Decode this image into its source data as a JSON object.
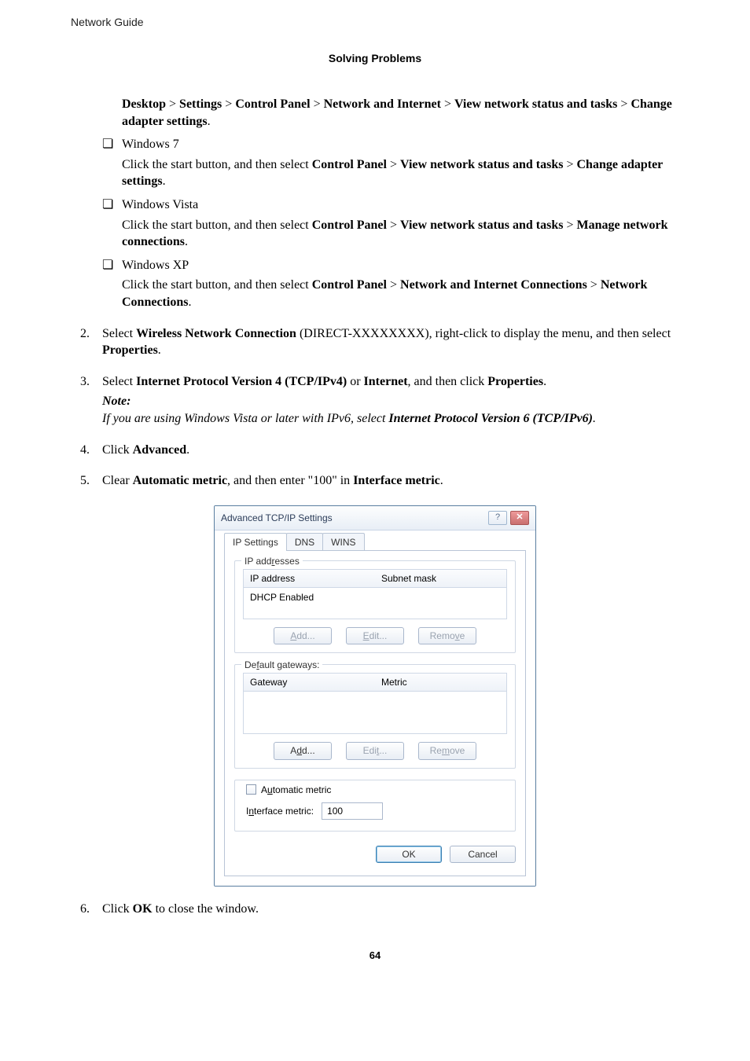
{
  "header_left": "Network Guide",
  "header_center": "Solving Problems",
  "page_number": "64",
  "body": {
    "intro_line": {
      "parts": [
        {
          "t": "Desktop",
          "b": true
        },
        {
          "t": " > "
        },
        {
          "t": "Settings",
          "b": true
        },
        {
          "t": " > "
        },
        {
          "t": "Control Panel",
          "b": true
        },
        {
          "t": " > "
        },
        {
          "t": "Network and Internet",
          "b": true
        },
        {
          "t": " > "
        },
        {
          "t": "View network status and tasks",
          "b": true
        },
        {
          "t": " > "
        },
        {
          "t": "Change adapter settings",
          "b": true
        },
        {
          "t": "."
        }
      ]
    },
    "bullets": [
      {
        "label": "Windows 7",
        "text": [
          {
            "t": "Click the start button, and then select "
          },
          {
            "t": "Control Panel",
            "b": true
          },
          {
            "t": " > "
          },
          {
            "t": "View network status and tasks",
            "b": true
          },
          {
            "t": " > "
          },
          {
            "t": "Change adapter settings",
            "b": true
          },
          {
            "t": "."
          }
        ]
      },
      {
        "label": "Windows Vista",
        "text": [
          {
            "t": "Click the start button, and then select "
          },
          {
            "t": "Control Panel",
            "b": true
          },
          {
            "t": " > "
          },
          {
            "t": "View network status and tasks",
            "b": true
          },
          {
            "t": " > "
          },
          {
            "t": "Manage network connections",
            "b": true
          },
          {
            "t": "."
          }
        ]
      },
      {
        "label": "Windows XP",
        "text": [
          {
            "t": "Click the start button, and then select "
          },
          {
            "t": "Control Panel",
            "b": true
          },
          {
            "t": " > "
          },
          {
            "t": "Network and Internet Connections",
            "b": true
          },
          {
            "t": " > "
          },
          {
            "t": "Network Connections",
            "b": true
          },
          {
            "t": "."
          }
        ]
      }
    ],
    "steps": [
      {
        "n": "2.",
        "text": [
          {
            "t": "Select "
          },
          {
            "t": "Wireless Network Connection",
            "b": true
          },
          {
            "t": " (DIRECT-XXXXXXXX), right-click to display the menu, and then select "
          },
          {
            "t": "Properties",
            "b": true
          },
          {
            "t": "."
          }
        ]
      },
      {
        "n": "3.",
        "text": [
          {
            "t": "Select "
          },
          {
            "t": "Internet Protocol Version 4 (TCP/IPv4)",
            "b": true
          },
          {
            "t": " or "
          },
          {
            "t": "Internet",
            "b": true
          },
          {
            "t": ", and then click "
          },
          {
            "t": "Properties",
            "b": true
          },
          {
            "t": "."
          }
        ],
        "note_label": "Note:",
        "note_body": [
          {
            "t": "If you are using Windows Vista or later with IPv6, select "
          },
          {
            "t": "Internet Protocol Version 6 (TCP/IPv6)",
            "b": true
          },
          {
            "t": "."
          }
        ]
      },
      {
        "n": "4.",
        "text": [
          {
            "t": "Click "
          },
          {
            "t": "Advanced",
            "b": true
          },
          {
            "t": "."
          }
        ]
      },
      {
        "n": "5.",
        "text": [
          {
            "t": "Clear "
          },
          {
            "t": "Automatic metric",
            "b": true
          },
          {
            "t": ", and then enter \"100\" in "
          },
          {
            "t": "Interface metric",
            "b": true
          },
          {
            "t": "."
          }
        ]
      },
      {
        "n": "6.",
        "text": [
          {
            "t": "Click "
          },
          {
            "t": "OK",
            "b": true
          },
          {
            "t": " to close the window."
          }
        ]
      }
    ]
  },
  "dialog": {
    "title": "Advanced TCP/IP Settings",
    "help_btn": "?",
    "close_btn": "✕",
    "tabs": {
      "active": "IP Settings",
      "t2": "DNS",
      "t3": "WINS"
    },
    "group_ip": {
      "legend_prefix": "IP add",
      "legend_uchar": "r",
      "legend_suffix": "esses",
      "col1": "IP address",
      "col2": "Subnet mask",
      "row": "DHCP Enabled",
      "btn_add_pre": "",
      "btn_add_u": "A",
      "btn_add_post": "dd...",
      "btn_edit_pre": "",
      "btn_edit_u": "E",
      "btn_edit_post": "dit...",
      "btn_rem_pre": "Remo",
      "btn_rem_u": "v",
      "btn_rem_post": "e"
    },
    "group_gw": {
      "legend_pre": "De",
      "legend_u": "f",
      "legend_post": "ault gateways:",
      "col1": "Gateway",
      "col2": "Metric",
      "btn_add_pre": "A",
      "btn_add_u": "d",
      "btn_add_post": "d...",
      "btn_edit_pre": "Edi",
      "btn_edit_u": "t",
      "btn_edit_post": "...",
      "btn_rem_pre": "Re",
      "btn_rem_u": "m",
      "btn_rem_post": "ove"
    },
    "metric": {
      "auto_pre": "A",
      "auto_u": "u",
      "auto_post": "tomatic metric",
      "iface_pre": "I",
      "iface_u": "n",
      "iface_post": "terface metric:",
      "value": "100"
    },
    "footer": {
      "ok": "OK",
      "cancel": "Cancel"
    }
  }
}
